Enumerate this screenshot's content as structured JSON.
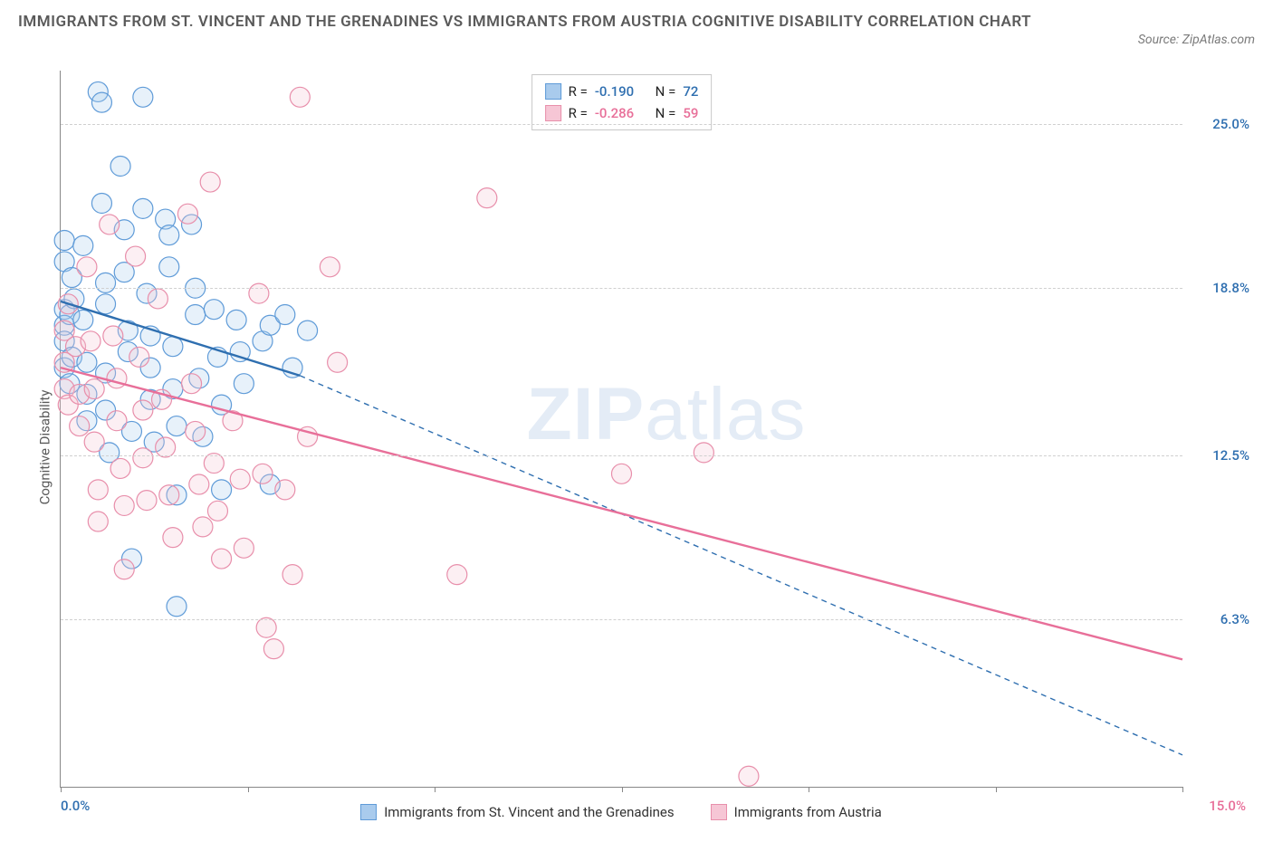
{
  "title": "IMMIGRANTS FROM ST. VINCENT AND THE GRENADINES VS IMMIGRANTS FROM AUSTRIA COGNITIVE DISABILITY CORRELATION CHART",
  "source": "Source: ZipAtlas.com",
  "yaxis_title": "Cognitive Disability",
  "watermark_a": "ZIP",
  "watermark_b": "atlas",
  "chart": {
    "type": "scatter",
    "background_color": "#ffffff",
    "grid_color": "#d0d0d0",
    "axis_color": "#888888",
    "xlim": [
      0,
      15
    ],
    "ylim": [
      0,
      27
    ],
    "xticks": [
      0,
      2.5,
      5,
      7.5,
      10,
      12.5,
      15
    ],
    "yticks": [
      {
        "v": 6.3,
        "label": "6.3%",
        "color": "#2f6fb0"
      },
      {
        "v": 12.5,
        "label": "12.5%",
        "color": "#2f6fb0"
      },
      {
        "v": 18.8,
        "label": "18.8%",
        "color": "#2f6fb0"
      },
      {
        "v": 25.0,
        "label": "25.0%",
        "color": "#2f6fb0"
      }
    ],
    "xlabel_left": {
      "text": "0.0%",
      "color": "#2f6fb0"
    },
    "xlabel_right": {
      "text": "15.0%",
      "color": "#e86f99"
    },
    "marker_radius": 11,
    "marker_stroke_width": 1.2,
    "marker_fill_opacity": 0.28,
    "line_width_solid": 2.4,
    "line_width_dash": 1.4,
    "dash_pattern": "6 5"
  },
  "series": [
    {
      "key": "svg",
      "label": "Immigrants from St. Vincent and the Grenadines",
      "color_stroke": "#5f9bd8",
      "color_fill": "#a9cbed",
      "line_color": "#2f6fb0",
      "R": "-0.190",
      "N": "72",
      "trend": {
        "x1": 0,
        "y1": 18.3,
        "x2": 3.2,
        "y2": 15.5,
        "x2_ext": 15,
        "y2_ext": 1.2
      },
      "points": [
        [
          0.05,
          19.8
        ],
        [
          0.05,
          18.0
        ],
        [
          0.05,
          17.4
        ],
        [
          0.05,
          16.8
        ],
        [
          0.05,
          15.8
        ],
        [
          0.05,
          20.6
        ],
        [
          0.15,
          19.2
        ],
        [
          0.15,
          16.2
        ],
        [
          0.12,
          17.8
        ],
        [
          0.12,
          15.2
        ],
        [
          0.18,
          18.4
        ],
        [
          0.3,
          20.4
        ],
        [
          0.3,
          17.6
        ],
        [
          0.35,
          16.0
        ],
        [
          0.35,
          14.8
        ],
        [
          0.35,
          13.8
        ],
        [
          0.5,
          26.2
        ],
        [
          0.55,
          25.8
        ],
        [
          0.55,
          22.0
        ],
        [
          0.6,
          19.0
        ],
        [
          0.6,
          18.2
        ],
        [
          0.6,
          15.6
        ],
        [
          0.6,
          14.2
        ],
        [
          0.65,
          12.6
        ],
        [
          0.8,
          23.4
        ],
        [
          0.85,
          21.0
        ],
        [
          0.85,
          19.4
        ],
        [
          0.9,
          17.2
        ],
        [
          0.9,
          16.4
        ],
        [
          0.95,
          13.4
        ],
        [
          0.95,
          8.6
        ],
        [
          1.1,
          26.0
        ],
        [
          1.1,
          21.8
        ],
        [
          1.15,
          18.6
        ],
        [
          1.2,
          17.0
        ],
        [
          1.2,
          15.8
        ],
        [
          1.2,
          14.6
        ],
        [
          1.25,
          13.0
        ],
        [
          1.4,
          21.4
        ],
        [
          1.45,
          20.8
        ],
        [
          1.45,
          19.6
        ],
        [
          1.5,
          16.6
        ],
        [
          1.5,
          15.0
        ],
        [
          1.55,
          13.6
        ],
        [
          1.55,
          11.0
        ],
        [
          1.55,
          6.8
        ],
        [
          1.75,
          21.2
        ],
        [
          1.8,
          18.8
        ],
        [
          1.8,
          17.8
        ],
        [
          1.85,
          15.4
        ],
        [
          1.9,
          13.2
        ],
        [
          2.05,
          18.0
        ],
        [
          2.1,
          16.2
        ],
        [
          2.15,
          14.4
        ],
        [
          2.15,
          11.2
        ],
        [
          2.35,
          17.6
        ],
        [
          2.4,
          16.4
        ],
        [
          2.45,
          15.2
        ],
        [
          2.7,
          16.8
        ],
        [
          2.8,
          17.4
        ],
        [
          2.8,
          11.4
        ],
        [
          3.0,
          17.8
        ],
        [
          3.1,
          15.8
        ],
        [
          3.3,
          17.2
        ]
      ]
    },
    {
      "key": "aut",
      "label": "Immigrants from Austria",
      "color_stroke": "#e88fab",
      "color_fill": "#f6c6d5",
      "line_color": "#e86f99",
      "R": "-0.286",
      "N": "59",
      "trend": {
        "x1": 0,
        "y1": 15.8,
        "x2": 15,
        "y2": 4.8
      },
      "points": [
        [
          0.05,
          17.2
        ],
        [
          0.05,
          16.0
        ],
        [
          0.05,
          15.0
        ],
        [
          0.1,
          18.2
        ],
        [
          0.1,
          14.4
        ],
        [
          0.2,
          16.6
        ],
        [
          0.25,
          14.8
        ],
        [
          0.25,
          13.6
        ],
        [
          0.35,
          19.6
        ],
        [
          0.4,
          16.8
        ],
        [
          0.45,
          15.0
        ],
        [
          0.45,
          13.0
        ],
        [
          0.5,
          11.2
        ],
        [
          0.5,
          10.0
        ],
        [
          0.65,
          21.2
        ],
        [
          0.7,
          17.0
        ],
        [
          0.75,
          15.4
        ],
        [
          0.75,
          13.8
        ],
        [
          0.8,
          12.0
        ],
        [
          0.85,
          10.6
        ],
        [
          0.85,
          8.2
        ],
        [
          1.0,
          20.0
        ],
        [
          1.05,
          16.2
        ],
        [
          1.1,
          14.2
        ],
        [
          1.1,
          12.4
        ],
        [
          1.15,
          10.8
        ],
        [
          1.3,
          18.4
        ],
        [
          1.35,
          14.6
        ],
        [
          1.4,
          12.8
        ],
        [
          1.45,
          11.0
        ],
        [
          1.5,
          9.4
        ],
        [
          1.7,
          21.6
        ],
        [
          1.75,
          15.2
        ],
        [
          1.8,
          13.4
        ],
        [
          1.85,
          11.4
        ],
        [
          1.9,
          9.8
        ],
        [
          2.0,
          22.8
        ],
        [
          2.05,
          12.2
        ],
        [
          2.1,
          10.4
        ],
        [
          2.15,
          8.6
        ],
        [
          2.3,
          13.8
        ],
        [
          2.4,
          11.6
        ],
        [
          2.45,
          9.0
        ],
        [
          2.65,
          18.6
        ],
        [
          2.7,
          11.8
        ],
        [
          2.75,
          6.0
        ],
        [
          2.85,
          5.2
        ],
        [
          3.0,
          11.2
        ],
        [
          3.1,
          8.0
        ],
        [
          3.2,
          26.0
        ],
        [
          3.3,
          13.2
        ],
        [
          3.6,
          19.6
        ],
        [
          3.7,
          16.0
        ],
        [
          5.3,
          8.0
        ],
        [
          5.7,
          22.2
        ],
        [
          7.5,
          11.8
        ],
        [
          8.6,
          12.6
        ],
        [
          9.2,
          0.4
        ]
      ]
    }
  ],
  "legend_box": {
    "R_label": "R =",
    "N_label": "N ="
  },
  "bottom_legend": {
    "items": [
      {
        "series": 0
      },
      {
        "series": 1
      }
    ]
  }
}
